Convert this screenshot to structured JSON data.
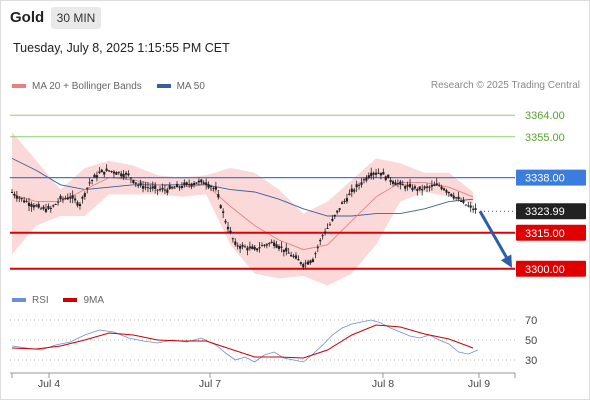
{
  "header": {
    "title": "Gold",
    "timeframe": "30 MIN",
    "timestamp": "Tuesday, July 8, 2025 1:15:55 PM CET"
  },
  "legend": {
    "ma20_label": "MA 20 + Bollinger Bands",
    "ma50_label": "MA 50",
    "credit": "Research © 2025 Trading Central",
    "rsi_label": "RSI",
    "ma9_label": "9MA"
  },
  "colors": {
    "bollinger_fill": "#fbd9d9",
    "ma20": "#e88080",
    "ma50": "#3a5f9a",
    "candle": "#222222",
    "pivot": "#3b7ddd",
    "support": "#e00000",
    "resistance": "#8fcf6a",
    "current": "#222222",
    "rsi": "#6a8fd8",
    "ma9": "#cc0000",
    "forecast_arrow": "#2e5da8"
  },
  "chart_data": [
    {
      "type": "line",
      "title": "",
      "instrument": "Gold",
      "timeframe": "30 MIN",
      "candle_style": "candlestick",
      "x_tick_labels": [
        "Jul 4",
        "Jul 7",
        "Jul 8",
        "Jul 9"
      ],
      "ylim": [
        3297,
        3372
      ],
      "levels": [
        {
          "name": "resistance-2",
          "value": 3364.0,
          "label": "3364.00",
          "style": "resistance"
        },
        {
          "name": "resistance-1",
          "value": 3355.0,
          "label": "3355.00",
          "style": "resistance"
        },
        {
          "name": "pivot",
          "value": 3338.0,
          "label": "3338.00",
          "style": "pivot"
        },
        {
          "name": "last-price",
          "value": 3323.99,
          "label": "3323.99",
          "style": "current"
        },
        {
          "name": "support-1",
          "value": 3315.0,
          "label": "3315.00",
          "style": "support"
        },
        {
          "name": "support-2",
          "value": 3300.0,
          "label": "3300.00",
          "style": "support"
        }
      ],
      "close_path": [
        {
          "x": 0,
          "y": 3332
        },
        {
          "x": 4,
          "y": 3329
        },
        {
          "x": 8,
          "y": 3327
        },
        {
          "x": 12,
          "y": 3325
        },
        {
          "x": 16,
          "y": 3325
        },
        {
          "x": 20,
          "y": 3329
        },
        {
          "x": 24,
          "y": 3330
        },
        {
          "x": 28,
          "y": 3327
        },
        {
          "x": 32,
          "y": 3336
        },
        {
          "x": 36,
          "y": 3340
        },
        {
          "x": 40,
          "y": 3341
        },
        {
          "x": 44,
          "y": 3340
        },
        {
          "x": 48,
          "y": 3339
        },
        {
          "x": 52,
          "y": 3335
        },
        {
          "x": 56,
          "y": 3334
        },
        {
          "x": 60,
          "y": 3333
        },
        {
          "x": 64,
          "y": 3333
        },
        {
          "x": 68,
          "y": 3334
        },
        {
          "x": 72,
          "y": 3335
        },
        {
          "x": 76,
          "y": 3336
        },
        {
          "x": 80,
          "y": 3336
        },
        {
          "x": 84,
          "y": 3333
        },
        {
          "x": 88,
          "y": 3320
        },
        {
          "x": 92,
          "y": 3310
        },
        {
          "x": 96,
          "y": 3309
        },
        {
          "x": 100,
          "y": 3308
        },
        {
          "x": 104,
          "y": 3310
        },
        {
          "x": 108,
          "y": 3311
        },
        {
          "x": 112,
          "y": 3308
        },
        {
          "x": 116,
          "y": 3305
        },
        {
          "x": 120,
          "y": 3302
        },
        {
          "x": 124,
          "y": 3304
        },
        {
          "x": 128,
          "y": 3314
        },
        {
          "x": 132,
          "y": 3320
        },
        {
          "x": 136,
          "y": 3327
        },
        {
          "x": 140,
          "y": 3332
        },
        {
          "x": 144,
          "y": 3336
        },
        {
          "x": 148,
          "y": 3340
        },
        {
          "x": 152,
          "y": 3340
        },
        {
          "x": 156,
          "y": 3337
        },
        {
          "x": 160,
          "y": 3335
        },
        {
          "x": 164,
          "y": 3334
        },
        {
          "x": 168,
          "y": 3333
        },
        {
          "x": 172,
          "y": 3334
        },
        {
          "x": 176,
          "y": 3335
        },
        {
          "x": 180,
          "y": 3332
        },
        {
          "x": 184,
          "y": 3329
        },
        {
          "x": 188,
          "y": 3326
        },
        {
          "x": 192,
          "y": 3324
        }
      ],
      "ma20": [
        {
          "x": 0,
          "y": 3331
        },
        {
          "x": 10,
          "y": 3328
        },
        {
          "x": 20,
          "y": 3328
        },
        {
          "x": 30,
          "y": 3333
        },
        {
          "x": 40,
          "y": 3338
        },
        {
          "x": 50,
          "y": 3337
        },
        {
          "x": 60,
          "y": 3335
        },
        {
          "x": 70,
          "y": 3334
        },
        {
          "x": 80,
          "y": 3335
        },
        {
          "x": 90,
          "y": 3326
        },
        {
          "x": 100,
          "y": 3318
        },
        {
          "x": 110,
          "y": 3312
        },
        {
          "x": 120,
          "y": 3308
        },
        {
          "x": 130,
          "y": 3310
        },
        {
          "x": 140,
          "y": 3320
        },
        {
          "x": 150,
          "y": 3330
        },
        {
          "x": 160,
          "y": 3336
        },
        {
          "x": 170,
          "y": 3336
        },
        {
          "x": 180,
          "y": 3334
        },
        {
          "x": 190,
          "y": 3330
        }
      ],
      "ma50": [
        {
          "x": 0,
          "y": 3346
        },
        {
          "x": 10,
          "y": 3341
        },
        {
          "x": 20,
          "y": 3335
        },
        {
          "x": 30,
          "y": 3333
        },
        {
          "x": 40,
          "y": 3334
        },
        {
          "x": 50,
          "y": 3335
        },
        {
          "x": 60,
          "y": 3335
        },
        {
          "x": 70,
          "y": 3335
        },
        {
          "x": 80,
          "y": 3335
        },
        {
          "x": 90,
          "y": 3333
        },
        {
          "x": 100,
          "y": 3332
        },
        {
          "x": 110,
          "y": 3329
        },
        {
          "x": 120,
          "y": 3325
        },
        {
          "x": 130,
          "y": 3322
        },
        {
          "x": 140,
          "y": 3322
        },
        {
          "x": 150,
          "y": 3323
        },
        {
          "x": 160,
          "y": 3323
        },
        {
          "x": 170,
          "y": 3325
        },
        {
          "x": 180,
          "y": 3328
        },
        {
          "x": 190,
          "y": 3329
        }
      ],
      "bollinger_upper": [
        {
          "x": 0,
          "y": 3357
        },
        {
          "x": 10,
          "y": 3345
        },
        {
          "x": 20,
          "y": 3333
        },
        {
          "x": 30,
          "y": 3342
        },
        {
          "x": 40,
          "y": 3345
        },
        {
          "x": 50,
          "y": 3343
        },
        {
          "x": 60,
          "y": 3339
        },
        {
          "x": 70,
          "y": 3338
        },
        {
          "x": 80,
          "y": 3339
        },
        {
          "x": 90,
          "y": 3342
        },
        {
          "x": 100,
          "y": 3340
        },
        {
          "x": 110,
          "y": 3333
        },
        {
          "x": 120,
          "y": 3323
        },
        {
          "x": 130,
          "y": 3328
        },
        {
          "x": 140,
          "y": 3337
        },
        {
          "x": 150,
          "y": 3346
        },
        {
          "x": 160,
          "y": 3344
        },
        {
          "x": 170,
          "y": 3340
        },
        {
          "x": 180,
          "y": 3340
        },
        {
          "x": 190,
          "y": 3332
        }
      ],
      "bollinger_lower": [
        {
          "x": 0,
          "y": 3306
        },
        {
          "x": 10,
          "y": 3318
        },
        {
          "x": 20,
          "y": 3322
        },
        {
          "x": 30,
          "y": 3322
        },
        {
          "x": 40,
          "y": 3331
        },
        {
          "x": 50,
          "y": 3331
        },
        {
          "x": 60,
          "y": 3331
        },
        {
          "x": 70,
          "y": 3330
        },
        {
          "x": 80,
          "y": 3331
        },
        {
          "x": 90,
          "y": 3310
        },
        {
          "x": 100,
          "y": 3298
        },
        {
          "x": 110,
          "y": 3296
        },
        {
          "x": 120,
          "y": 3297
        },
        {
          "x": 130,
          "y": 3293
        },
        {
          "x": 140,
          "y": 3298
        },
        {
          "x": 150,
          "y": 3310
        },
        {
          "x": 160,
          "y": 3328
        },
        {
          "x": 170,
          "y": 3332
        },
        {
          "x": 180,
          "y": 3330
        },
        {
          "x": 190,
          "y": 3327
        }
      ],
      "forecast": {
        "from": 3323.99,
        "to": 3300.0
      }
    },
    {
      "type": "line",
      "title": "",
      "series": [
        {
          "name": "RSI"
        },
        {
          "name": "9MA"
        }
      ],
      "ylim": [
        20,
        80
      ],
      "y_ticks": [
        30,
        50,
        70
      ],
      "rsi": [
        {
          "x": 0,
          "y": 44
        },
        {
          "x": 6,
          "y": 42
        },
        {
          "x": 12,
          "y": 40
        },
        {
          "x": 18,
          "y": 45
        },
        {
          "x": 24,
          "y": 48
        },
        {
          "x": 30,
          "y": 55
        },
        {
          "x": 36,
          "y": 60
        },
        {
          "x": 42,
          "y": 58
        },
        {
          "x": 48,
          "y": 52
        },
        {
          "x": 54,
          "y": 49
        },
        {
          "x": 60,
          "y": 47
        },
        {
          "x": 66,
          "y": 50
        },
        {
          "x": 72,
          "y": 48
        },
        {
          "x": 78,
          "y": 52
        },
        {
          "x": 84,
          "y": 45
        },
        {
          "x": 88,
          "y": 37
        },
        {
          "x": 92,
          "y": 30
        },
        {
          "x": 96,
          "y": 33
        },
        {
          "x": 100,
          "y": 28
        },
        {
          "x": 104,
          "y": 35
        },
        {
          "x": 108,
          "y": 38
        },
        {
          "x": 112,
          "y": 32
        },
        {
          "x": 116,
          "y": 30
        },
        {
          "x": 120,
          "y": 28
        },
        {
          "x": 124,
          "y": 36
        },
        {
          "x": 128,
          "y": 45
        },
        {
          "x": 132,
          "y": 55
        },
        {
          "x": 136,
          "y": 62
        },
        {
          "x": 140,
          "y": 66
        },
        {
          "x": 144,
          "y": 68
        },
        {
          "x": 148,
          "y": 70
        },
        {
          "x": 152,
          "y": 67
        },
        {
          "x": 156,
          "y": 62
        },
        {
          "x": 160,
          "y": 58
        },
        {
          "x": 164,
          "y": 54
        },
        {
          "x": 168,
          "y": 52
        },
        {
          "x": 172,
          "y": 55
        },
        {
          "x": 176,
          "y": 50
        },
        {
          "x": 180,
          "y": 46
        },
        {
          "x": 184,
          "y": 38
        },
        {
          "x": 188,
          "y": 36
        },
        {
          "x": 192,
          "y": 40
        }
      ],
      "ma9": [
        {
          "x": 0,
          "y": 42
        },
        {
          "x": 10,
          "y": 41
        },
        {
          "x": 20,
          "y": 44
        },
        {
          "x": 30,
          "y": 50
        },
        {
          "x": 40,
          "y": 57
        },
        {
          "x": 50,
          "y": 55
        },
        {
          "x": 60,
          "y": 50
        },
        {
          "x": 70,
          "y": 49
        },
        {
          "x": 80,
          "y": 49
        },
        {
          "x": 90,
          "y": 41
        },
        {
          "x": 100,
          "y": 33
        },
        {
          "x": 110,
          "y": 33
        },
        {
          "x": 120,
          "y": 32
        },
        {
          "x": 130,
          "y": 40
        },
        {
          "x": 140,
          "y": 55
        },
        {
          "x": 150,
          "y": 65
        },
        {
          "x": 160,
          "y": 63
        },
        {
          "x": 170,
          "y": 56
        },
        {
          "x": 180,
          "y": 51
        },
        {
          "x": 190,
          "y": 42
        }
      ]
    }
  ]
}
